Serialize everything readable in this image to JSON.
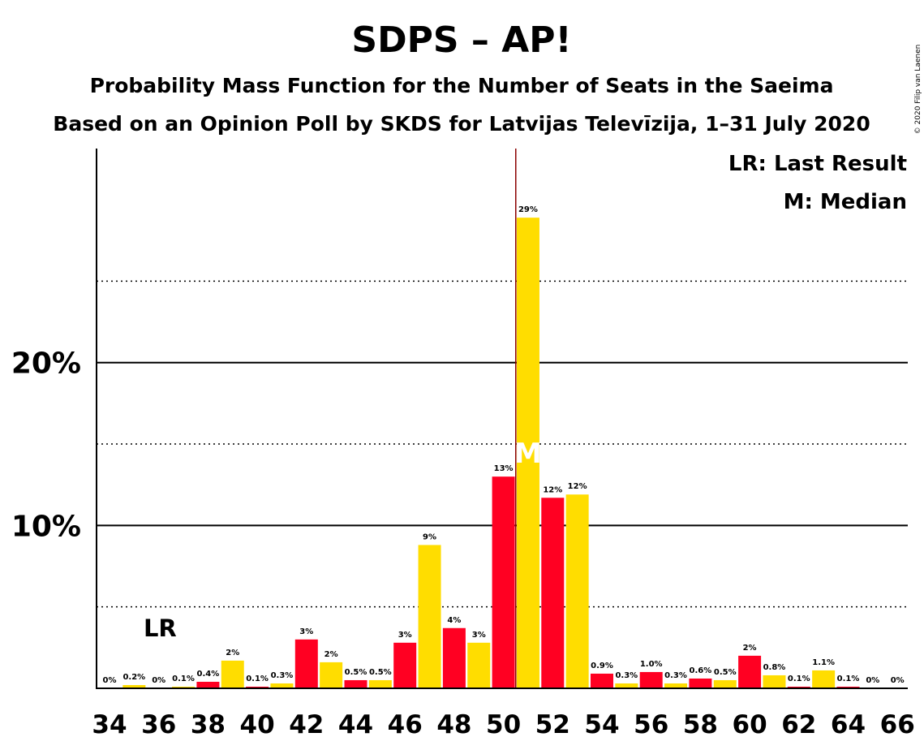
{
  "chart_data": {
    "type": "bar",
    "title": "SDPS – AP!",
    "subtitle_1": "Probability Mass Function for the Number of Seats in the Saeima",
    "subtitle_2": "Based on an Opinion Poll by SKDS for Latvijas Televīzija, 1–31 July 2020",
    "copyright": "© 2020 Filip van Laenen",
    "legend": {
      "lr": "LR: Last Result",
      "m": "M: Median",
      "placement": "top-right"
    },
    "ylim": [
      0,
      31.5
    ],
    "yticks": [
      {
        "value": 10,
        "label": "10%"
      },
      {
        "value": 20,
        "label": "20%"
      }
    ],
    "minor_gridlines": [
      5,
      15,
      25
    ],
    "x_tick_labels": [
      "34",
      "36",
      "38",
      "40",
      "42",
      "44",
      "46",
      "48",
      "50",
      "52",
      "54",
      "56",
      "58",
      "60",
      "62",
      "64",
      "66"
    ],
    "seats": [
      34,
      35,
      36,
      37,
      38,
      39,
      40,
      41,
      42,
      43,
      44,
      45,
      46,
      47,
      48,
      49,
      50,
      51,
      52,
      53,
      54,
      55,
      56,
      57,
      58,
      59,
      60,
      61,
      62,
      63,
      64,
      65,
      66
    ],
    "values": [
      0,
      0.2,
      0,
      0.1,
      0.4,
      1.7,
      0.1,
      0.3,
      3.0,
      1.6,
      0.5,
      0.5,
      2.8,
      8.8,
      3.7,
      2.8,
      13.0,
      28.9,
      11.7,
      11.9,
      0.9,
      0.3,
      1.0,
      0.3,
      0.6,
      0.5,
      2.0,
      0.8,
      0.1,
      1.1,
      0.1,
      0,
      0
    ],
    "data_labels": [
      "0%",
      "0.2%",
      "0%",
      "0.1%",
      "0.4%",
      "2%",
      "0.1%",
      "0.3%",
      "3%",
      "2%",
      "0.5%",
      "0.5%",
      "3%",
      "9%",
      "4%",
      "3%",
      "13%",
      "29%",
      "12%",
      "12%",
      "0.9%",
      "0.3%",
      "1.0%",
      "0.3%",
      "0.6%",
      "0.5%",
      "2%",
      "0.8%",
      "0.1%",
      "1.1%",
      "0.1%",
      "0%",
      "0%"
    ],
    "last_result_seat": 35,
    "last_result_marker": "LR",
    "median_seat": 51,
    "median_marker": "M",
    "majority_line_seat": 50.5,
    "colors": {
      "even_seat": "#ff0022",
      "odd_seat": "#ffdd00",
      "majority_line": "#8b0000",
      "grid": "#000000"
    }
  }
}
